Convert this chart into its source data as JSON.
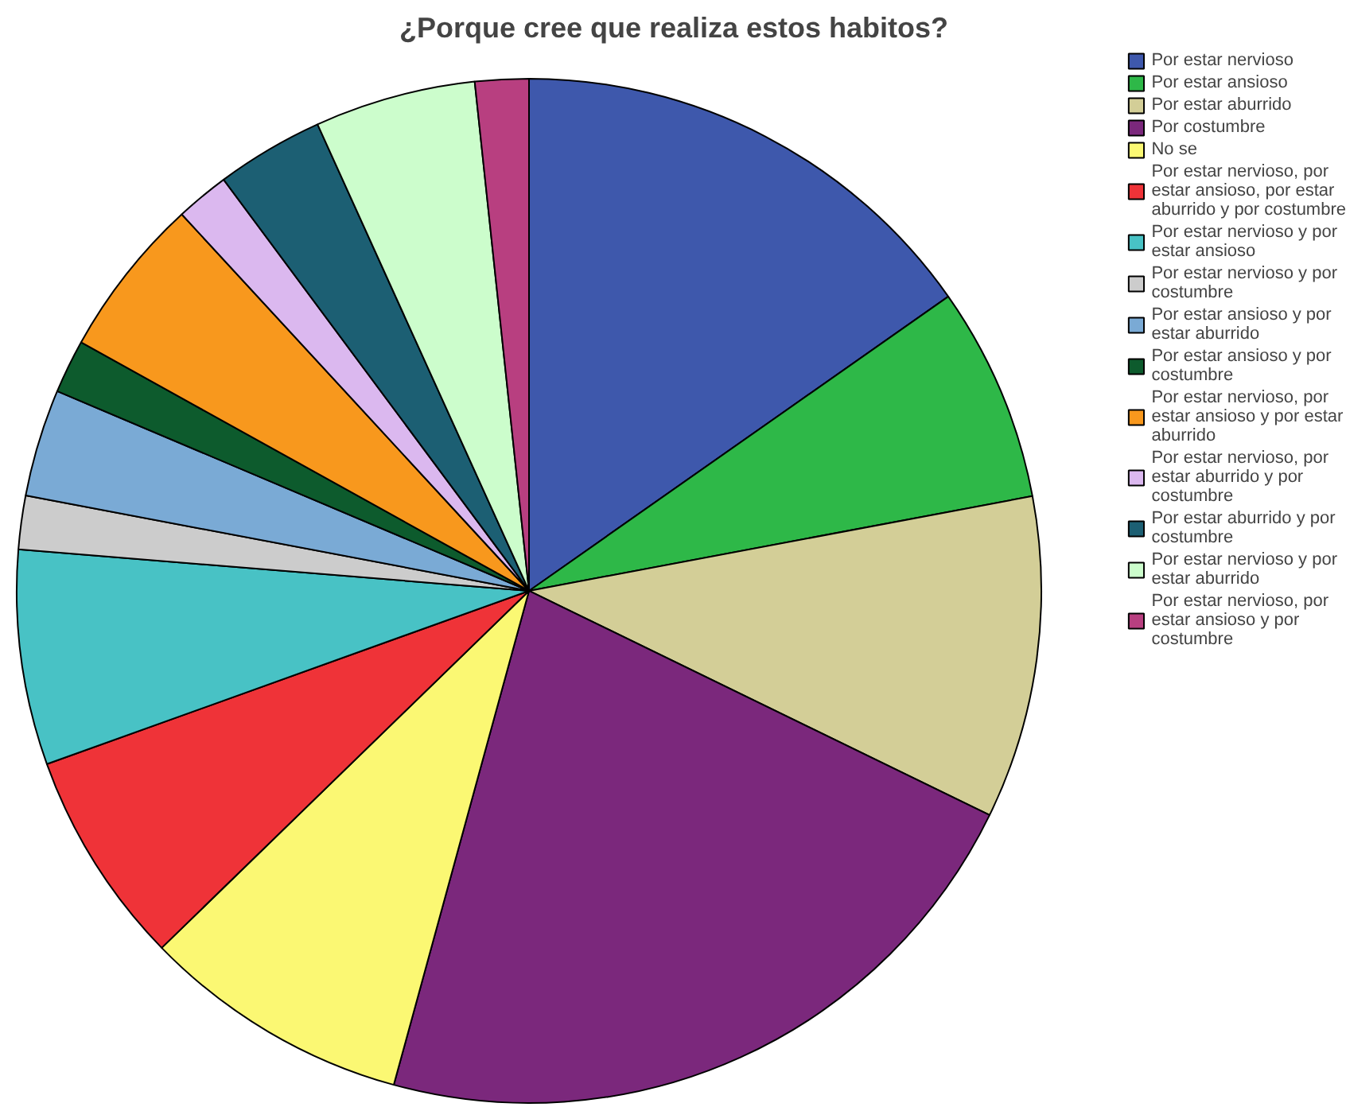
{
  "chart_data": {
    "type": "pie",
    "title": "¿Porque cree que realiza estos habitos?",
    "categories": [
      "Por estar nervioso",
      "Por estar ansioso",
      "Por estar aburrido",
      "Por costumbre",
      "No se",
      "Por estar nervioso, por estar ansioso, por estar aburrido y por costumbre",
      "Por estar nervioso y por estar ansioso",
      "Por estar nervioso y por costumbre",
      "Por estar ansioso y por estar aburrido",
      "Por estar ansioso y por costumbre",
      "Por estar nervioso, por estar ansioso y por estar aburrido",
      "Por estar nervioso, por estar aburrido y por costumbre",
      "Por estar aburrido y por costumbre",
      "Por estar nervioso y por estar aburrido",
      "Por estar nervioso, por estar ansioso y por costumbre"
    ],
    "values": [
      15.25,
      6.78,
      10.17,
      22.03,
      8.47,
      6.78,
      6.78,
      1.69,
      3.39,
      1.69,
      5.08,
      1.69,
      3.39,
      5.08,
      1.69
    ],
    "colors": [
      "#3e58ac",
      "#2eb848",
      "#d3ce97",
      "#7b287c",
      "#fbf873",
      "#ef3338",
      "#48c2c5",
      "#cccccc",
      "#7aaad5",
      "#0d5b2d",
      "#f8981d",
      "#dbb8ef",
      "#1c5f73",
      "#ccfdcc",
      "#b83f80"
    ],
    "legend": "right"
  }
}
